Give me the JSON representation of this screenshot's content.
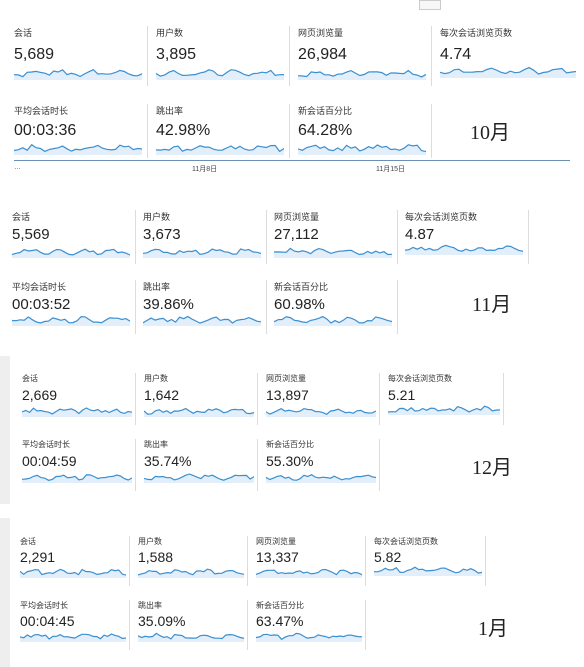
{
  "colors": {
    "line": "#3a8fd0",
    "fill": "#e2eef9"
  },
  "panels": [
    {
      "month": "10月",
      "metrics": [
        {
          "label": "会话",
          "value": "5,689"
        },
        {
          "label": "用户数",
          "value": "3,895"
        },
        {
          "label": "网页浏览量",
          "value": "26,984"
        },
        {
          "label": "每次会话浏览页数",
          "value": "4.74"
        },
        {
          "label": "平均会话时长",
          "value": "00:03:36"
        },
        {
          "label": "跳出率",
          "value": "42.98%"
        },
        {
          "label": "新会话百分比",
          "value": "64.28%"
        }
      ]
    },
    {
      "month": "11月",
      "metrics": [
        {
          "label": "会话",
          "value": "5,569"
        },
        {
          "label": "用户数",
          "value": "3,673"
        },
        {
          "label": "网页浏览量",
          "value": "27,112"
        },
        {
          "label": "每次会话浏览页数",
          "value": "4.87"
        },
        {
          "label": "平均会话时长",
          "value": "00:03:52"
        },
        {
          "label": "跳出率",
          "value": "39.86%"
        },
        {
          "label": "新会话百分比",
          "value": "60.98%"
        }
      ]
    },
    {
      "month": "12月",
      "metrics": [
        {
          "label": "会话",
          "value": "2,669"
        },
        {
          "label": "用户数",
          "value": "1,642"
        },
        {
          "label": "网页浏览量",
          "value": "13,897"
        },
        {
          "label": "每次会话浏览页数",
          "value": "5.21"
        },
        {
          "label": "平均会话时长",
          "value": "00:04:59"
        },
        {
          "label": "跳出率",
          "value": "35.74%"
        },
        {
          "label": "新会话百分比",
          "value": "55.30%"
        }
      ]
    },
    {
      "month": "1月",
      "metrics": [
        {
          "label": "会话",
          "value": "2,291"
        },
        {
          "label": "用户数",
          "value": "1,588"
        },
        {
          "label": "网页浏览量",
          "value": "13,337"
        },
        {
          "label": "每次会话浏览页数",
          "value": "5.82"
        },
        {
          "label": "平均会话时长",
          "value": "00:04:45"
        },
        {
          "label": "跳出率",
          "value": "35.09%"
        },
        {
          "label": "新会话百分比",
          "value": "63.47%"
        }
      ]
    }
  ],
  "timeline": {
    "left": "…",
    "tick1": "11月8日",
    "tick2": "11月15日"
  }
}
